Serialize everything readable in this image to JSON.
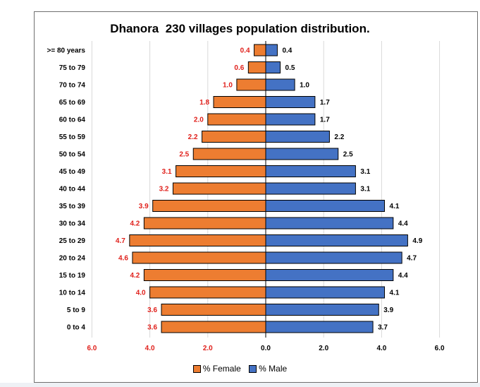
{
  "chart_data": {
    "type": "bar",
    "orientation": "horizontal-diverging",
    "title": "Dhanora  230 villages population distribution.",
    "categories": [
      ">= 80 years",
      "75 to 79",
      "70 to 74",
      "65 to 69",
      "60 to 64",
      "55 to 59",
      "50 to 54",
      "45 to 49",
      "40 to 44",
      "35 to 39",
      "30 to 34",
      "25 to 29",
      "20 to 24",
      "15 to 19",
      "10 to 14",
      "5 to 9",
      "0 to 4"
    ],
    "series": [
      {
        "name": "% Female",
        "color": "#ED7D31",
        "label_color": "#E0201B",
        "values": [
          0.4,
          0.6,
          1.0,
          1.8,
          2.0,
          2.2,
          2.5,
          3.1,
          3.2,
          3.9,
          4.2,
          4.7,
          4.6,
          4.2,
          4.0,
          3.6,
          3.6
        ],
        "labels": [
          "0.4",
          "0.6",
          "1.0",
          "1.8",
          "2.0",
          "2.2",
          "2.5",
          "3.1",
          "3.2",
          "3.9",
          "4.2",
          "4.7",
          "4.6",
          "4.2",
          "4.0",
          "3.6",
          "3.6"
        ]
      },
      {
        "name": "% Male",
        "color": "#4472C4",
        "label_color": "#000000",
        "values": [
          0.4,
          0.5,
          1.0,
          1.7,
          1.7,
          2.2,
          2.5,
          3.1,
          3.1,
          4.1,
          4.4,
          4.9,
          4.7,
          4.4,
          4.1,
          3.9,
          3.7
        ],
        "labels": [
          "0.4",
          "0.5",
          "1.0",
          "1.7",
          "1.7",
          "2.2",
          "2.5",
          "3.1",
          "3.1",
          "4.1",
          "4.4",
          "4.9",
          "4.7",
          "4.4",
          "4.1",
          "3.9",
          "3.7"
        ]
      }
    ],
    "x_ticks": [
      {
        "value": -6,
        "label": "6.0",
        "color": "#E0201B"
      },
      {
        "value": -4,
        "label": "4.0",
        "color": "#E0201B"
      },
      {
        "value": -2,
        "label": "2.0",
        "color": "#E0201B"
      },
      {
        "value": 0,
        "label": "0.0",
        "color": "#000000"
      },
      {
        "value": 2,
        "label": "2.0",
        "color": "#000000"
      },
      {
        "value": 4,
        "label": "4.0",
        "color": "#000000"
      },
      {
        "value": 6,
        "label": "6.0",
        "color": "#000000"
      }
    ],
    "xlim": [
      -6,
      6
    ],
    "grid": true,
    "legend_position": "bottom"
  }
}
